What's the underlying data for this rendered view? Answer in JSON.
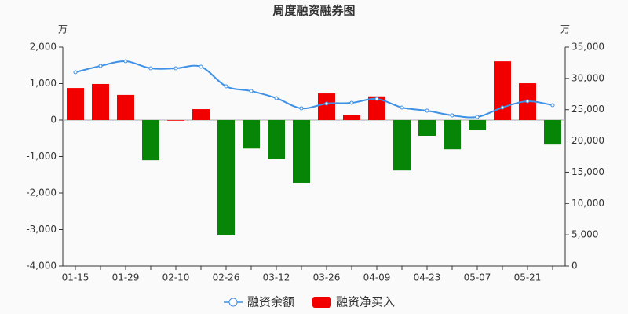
{
  "chart_data": {
    "type": "bar_line",
    "title": "周度融资融券图",
    "y_unit": "万",
    "y2_unit": "万",
    "categories": [
      "01-15",
      null,
      "01-29",
      null,
      "02-10",
      null,
      "02-26",
      null,
      "03-12",
      null,
      "03-26",
      null,
      "04-09",
      null,
      "04-23",
      null,
      "05-07",
      null,
      "05-21",
      null
    ],
    "ylim": [
      -4000,
      2000
    ],
    "yticks": [
      {
        "value": -4000,
        "label": "-4,000"
      },
      {
        "value": -3000,
        "label": "-3,000"
      },
      {
        "value": -2000,
        "label": "-2,000"
      },
      {
        "value": -1000,
        "label": "-1,000"
      },
      0,
      {
        "value": 1000,
        "label": "1,000"
      },
      {
        "value": 2000,
        "label": "2,000"
      }
    ],
    "y2lim": [
      0,
      35000
    ],
    "y2ticks": [
      0,
      {
        "value": 5000,
        "label": "5,000"
      },
      {
        "value": 10000,
        "label": "10,000"
      },
      {
        "value": 15000,
        "label": "15,000"
      },
      {
        "value": 20000,
        "label": "20,000"
      },
      {
        "value": 25000,
        "label": "25,000"
      },
      {
        "value": 30000,
        "label": "30,000"
      },
      {
        "value": 35000,
        "label": "35,000"
      }
    ],
    "series": [
      {
        "name": "融资余额",
        "type": "line",
        "axis": "y2",
        "color": "#3d91e6",
        "values": [
          30990,
          31990,
          32740,
          31610,
          31610,
          31860,
          28730,
          27970,
          26850,
          25210,
          25970,
          26090,
          26720,
          25340,
          24840,
          24090,
          23840,
          25340,
          26340,
          25720
        ]
      },
      {
        "name": "融资净买入",
        "type": "bar",
        "color": "#f20000",
        "negative_color": "#078507",
        "values": [
          880,
          990,
          690,
          -1100,
          0,
          300,
          -3160,
          -780,
          -1070,
          -1720,
          730,
          150,
          650,
          -1380,
          -430,
          -800,
          -280,
          1610,
          1010,
          -670
        ]
      }
    ]
  }
}
